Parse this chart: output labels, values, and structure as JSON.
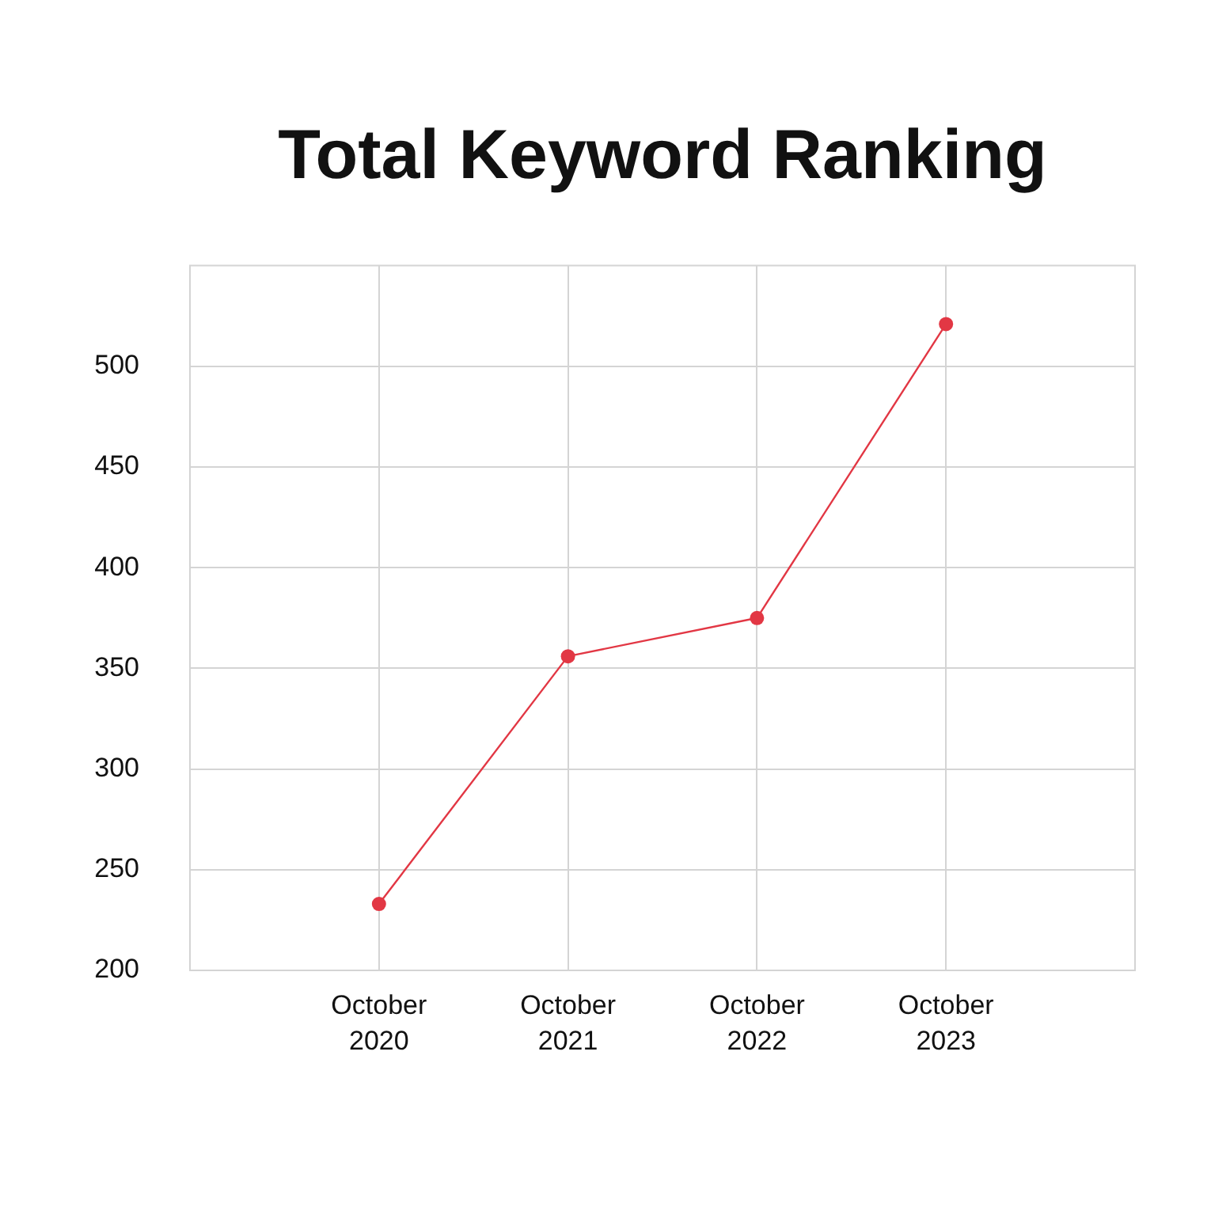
{
  "chart_data": {
    "type": "line",
    "title": "Total Keyword Ranking",
    "categories": [
      "October 2020",
      "October 2021",
      "October 2022",
      "October 2023"
    ],
    "series": [
      {
        "color": "#e23744",
        "values": [
          233,
          356,
          375,
          521
        ]
      }
    ],
    "ylim": [
      200,
      550
    ],
    "yticks": [
      200,
      250,
      300,
      350,
      400,
      450,
      500
    ],
    "grid": true,
    "marker": "circle",
    "line_style": "solid"
  }
}
